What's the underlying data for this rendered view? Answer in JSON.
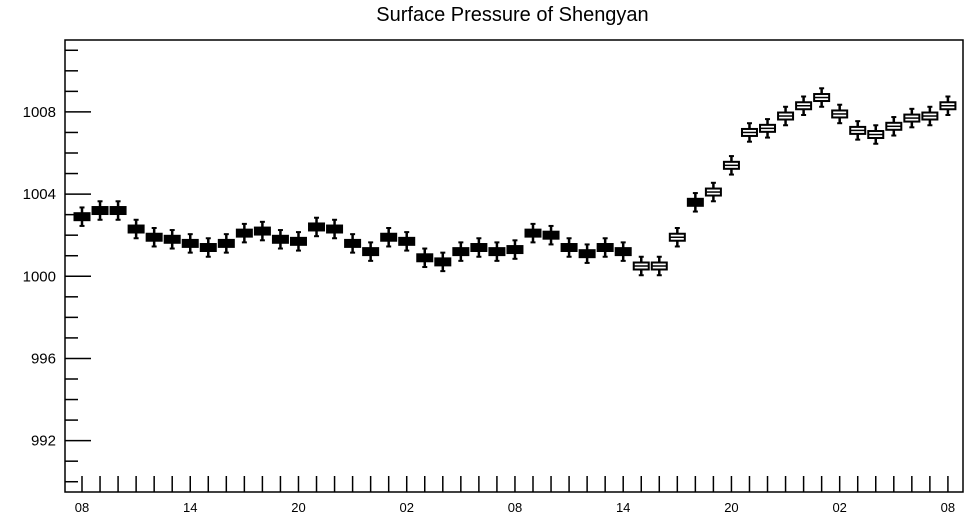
{
  "chart_data": {
    "type": "boxplot",
    "title": "Surface Pressure of Shengyan",
    "xlabel": "",
    "ylabel": "",
    "ylim": [
      989.5,
      1011.5
    ],
    "y_ticks": [
      992,
      996,
      1000,
      1004,
      1008
    ],
    "x_tick_labels": [
      "08",
      "14",
      "20",
      "02",
      "08",
      "14",
      "20",
      "02",
      "08"
    ],
    "grid": false,
    "legend": "none",
    "colors": {
      "filled_box": "#000000",
      "hollow_box": "#ffffff",
      "stroke": "#000000"
    },
    "values": [
      1002.9,
      1003.2,
      1003.2,
      1002.3,
      1001.9,
      1001.8,
      1001.6,
      1001.4,
      1001.6,
      1002.1,
      1002.2,
      1001.8,
      1001.7,
      1002.4,
      1002.3,
      1001.6,
      1001.2,
      1001.9,
      1001.7,
      1000.9,
      1000.7,
      1001.2,
      1001.4,
      1001.2,
      1001.3,
      1002.1,
      1002.0,
      1001.4,
      1001.1,
      1001.4,
      1001.2,
      1000.5,
      1000.5,
      1001.9,
      1003.6,
      1004.1,
      1005.4,
      1007.0,
      1007.2,
      1007.8,
      1008.3,
      1008.7,
      1007.9,
      1007.1,
      1006.9,
      1007.3,
      1007.7,
      1007.8,
      1008.3
    ],
    "hollow": [
      false,
      false,
      false,
      false,
      false,
      false,
      false,
      false,
      false,
      false,
      false,
      false,
      false,
      false,
      false,
      false,
      false,
      false,
      false,
      false,
      false,
      false,
      false,
      false,
      false,
      false,
      false,
      false,
      false,
      false,
      false,
      true,
      true,
      true,
      false,
      true,
      true,
      true,
      true,
      true,
      true,
      true,
      true,
      true,
      true,
      true,
      true,
      true,
      true
    ]
  }
}
